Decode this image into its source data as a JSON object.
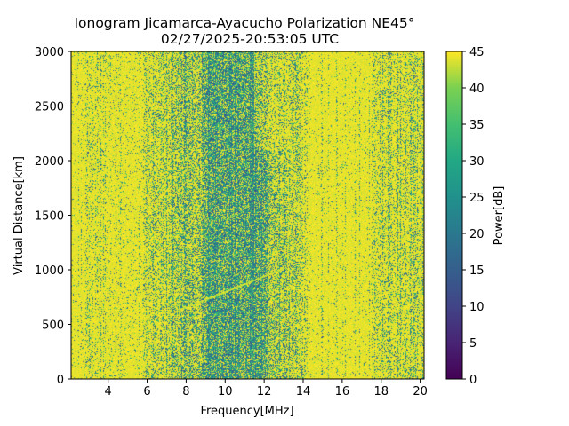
{
  "chart_data": {
    "type": "heatmap",
    "title": "Ionogram Jicamarca-Ayacucho Polarization NE45°",
    "subtitle": "02/27/2025-20:53:05 UTC",
    "xlabel": "Frequency[MHz]",
    "ylabel": "Virtual Distance[km]",
    "xlim": [
      2.1,
      20.2
    ],
    "ylim": [
      0,
      3000
    ],
    "xticks": [
      4,
      6,
      8,
      10,
      12,
      14,
      16,
      18,
      20
    ],
    "yticks": [
      0,
      500,
      1000,
      1500,
      2000,
      2500,
      3000
    ],
    "colorbar": {
      "label": "Power[dB]",
      "range": [
        0,
        45
      ],
      "ticks": [
        0,
        5,
        10,
        15,
        20,
        25,
        30,
        35,
        40,
        45
      ],
      "colormap": "viridis"
    },
    "features": {
      "noise_band_mhz": [
        5.8,
        13.2
      ],
      "strongest_noise_mhz": [
        8.8,
        12.2
      ],
      "noisy_high_freq_mhz": [
        17.5,
        20.2
      ],
      "trace": {
        "freq_mhz": [
          7.8,
          13.0
        ],
        "distance_km": [
          640,
          1010
        ]
      }
    },
    "colors": {
      "high": "#fde725",
      "mid": "#21918c",
      "low": "#440154"
    }
  }
}
